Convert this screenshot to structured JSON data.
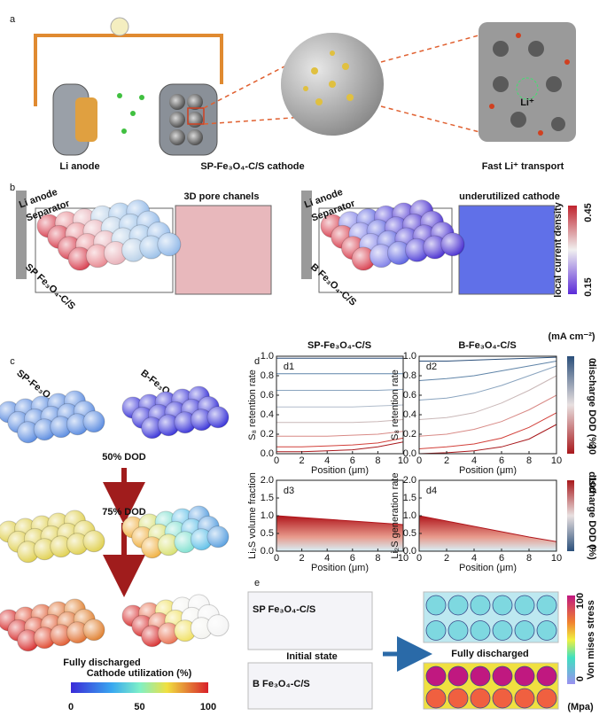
{
  "panel_a": {
    "label": "a",
    "captions": [
      "Li anode",
      "SP-Fe₃O₄-C/S cathode",
      "Fast Li⁺ transport"
    ],
    "ion_label": "Li⁺"
  },
  "panel_b": {
    "label": "b",
    "left": {
      "anode": "Li anode",
      "separator": "Separator",
      "cathode": "SP Fe₃O₄-C/S",
      "zoom_title": "3D pore chanels"
    },
    "right": {
      "anode": "Li anode",
      "separator": "Separator",
      "cathode": "B Fe₃O₄-C/S",
      "zoom_title": "underutilized cathode"
    },
    "colorbar": {
      "title": "local current density",
      "ticks": [
        0.45,
        0.15
      ],
      "unit": "(mA cm⁻²)"
    }
  },
  "panel_c": {
    "label": "c",
    "columns": [
      "SP-Fe₃O₄-C/S",
      "B-Fe₃O₄-C/S"
    ],
    "stages": [
      "50% DOD",
      "75% DOD",
      "Fully discharged"
    ],
    "colorbar": {
      "title": "Cathode utilization (%)",
      "ticks": [
        0,
        50,
        100
      ]
    }
  },
  "panel_d": {
    "label": "d",
    "column_titles": [
      "SP-Fe₃O₄-C/S",
      "B-Fe₃O₄-C/S"
    ],
    "subplots": [
      {
        "tag": "d1",
        "ylabel": "S₈ retention rate",
        "xlabel": "Position (μm)",
        "xlim": [
          0,
          10
        ],
        "xticks": [
          0,
          2,
          4,
          6,
          8,
          10
        ],
        "ylim": [
          0,
          1
        ],
        "yticks": [
          {
            "value": 0,
            "label": "0.0"
          },
          0.2,
          0.4,
          0.6,
          0.8,
          {
            "value": 1,
            "label": "1.0"
          }
        ],
        "x": [
          0,
          2,
          4,
          6,
          8,
          10
        ],
        "series": [
          {
            "color": "#2b4f7a",
            "values": [
              0.98,
              0.98,
              0.98,
              0.98,
              0.98,
              0.98
            ]
          },
          {
            "color": "#5f84a8",
            "values": [
              0.82,
              0.82,
              0.82,
              0.82,
              0.82,
              0.82
            ]
          },
          {
            "color": "#8aa4bf",
            "values": [
              0.65,
              0.65,
              0.65,
              0.65,
              0.65,
              0.66
            ]
          },
          {
            "color": "#b0bccb",
            "values": [
              0.48,
              0.48,
              0.48,
              0.48,
              0.49,
              0.5
            ]
          },
          {
            "color": "#c9b7b7",
            "values": [
              0.32,
              0.32,
              0.32,
              0.32,
              0.33,
              0.35
            ]
          },
          {
            "color": "#d88a86",
            "values": [
              0.18,
              0.18,
              0.18,
              0.19,
              0.2,
              0.23
            ]
          },
          {
            "color": "#d2403a",
            "values": [
              0.07,
              0.07,
              0.08,
              0.09,
              0.11,
              0.16
            ]
          },
          {
            "color": "#a8181c",
            "values": [
              0.02,
              0.02,
              0.03,
              0.04,
              0.07,
              0.12
            ]
          }
        ]
      },
      {
        "tag": "d2",
        "ylabel": "S₈ retention rate",
        "xlabel": "Position (μm)",
        "xlim": [
          0,
          10
        ],
        "xticks": [
          0,
          2,
          4,
          6,
          8,
          10
        ],
        "ylim": [
          0,
          1
        ],
        "yticks": [
          {
            "value": 0,
            "label": "0.0"
          },
          0.2,
          0.4,
          0.6,
          0.8,
          {
            "value": 1,
            "label": "1.0"
          }
        ],
        "x": [
          0,
          2,
          4,
          6,
          8,
          10
        ],
        "series": [
          {
            "color": "#2b4f7a",
            "values": [
              0.95,
              0.95,
              0.96,
              0.97,
              0.98,
              0.99
            ]
          },
          {
            "color": "#5f84a8",
            "values": [
              0.75,
              0.77,
              0.8,
              0.85,
              0.9,
              0.95
            ]
          },
          {
            "color": "#8aa4bf",
            "values": [
              0.55,
              0.57,
              0.62,
              0.7,
              0.8,
              0.9
            ]
          },
          {
            "color": "#c9b7b7",
            "values": [
              0.35,
              0.37,
              0.42,
              0.52,
              0.65,
              0.8
            ]
          },
          {
            "color": "#d88a86",
            "values": [
              0.18,
              0.2,
              0.25,
              0.33,
              0.45,
              0.6
            ]
          },
          {
            "color": "#d2403a",
            "values": [
              0.05,
              0.07,
              0.1,
              0.16,
              0.27,
              0.42
            ]
          },
          {
            "color": "#a8181c",
            "values": [
              0,
              0.01,
              0.03,
              0.07,
              0.15,
              0.3
            ]
          }
        ]
      },
      {
        "tag": "d3",
        "ylabel": "Li₂S volume fraction",
        "xlabel": "Position (μm)",
        "xlim": [
          0,
          10
        ],
        "xticks": [
          0,
          2,
          4,
          6,
          8,
          10
        ],
        "ylim": [
          0,
          2
        ],
        "yticks": [
          {
            "value": 0,
            "label": "0.0"
          },
          0.5,
          {
            "value": 1,
            "label": "1.0"
          },
          1.5,
          {
            "value": 2,
            "label": "2.0"
          }
        ],
        "x": [
          0,
          2,
          4,
          6,
          8,
          10
        ],
        "series": [
          {
            "color": "#b0161c",
            "values": [
              1.0,
              0.95,
              0.9,
              0.85,
              0.8,
              0.75
            ]
          }
        ]
      },
      {
        "tag": "d4",
        "ylabel": "Li₂S generation rate",
        "xlabel": "Position (μm)",
        "xlim": [
          0,
          10
        ],
        "xticks": [
          0,
          2,
          4,
          6,
          8,
          10
        ],
        "ylim": [
          0,
          2
        ],
        "yticks": [
          {
            "value": 0,
            "label": "0.0"
          },
          0.5,
          {
            "value": 1,
            "label": "1.0"
          },
          1.5,
          {
            "value": 2,
            "label": "2.0"
          }
        ],
        "x": [
          0,
          2,
          4,
          6,
          8,
          10
        ],
        "series": [
          {
            "color": "#b0161c",
            "values": [
              1.0,
              0.85,
              0.7,
              0.55,
              0.4,
              0.27
            ]
          }
        ]
      }
    ],
    "colorbars": [
      {
        "title": "discharge DOD (%)",
        "ticks": [
          0,
          20
        ]
      },
      {
        "title": "discharge DOD (%)",
        "ticks": [
          100,
          0
        ]
      }
    ]
  },
  "panel_e": {
    "label": "e",
    "samples": [
      "SP Fe₃O₄-C/S",
      "B Fe₃O₄-C/S"
    ],
    "states": [
      "Initial state",
      "Fully discharged"
    ],
    "colorbar": {
      "title": "Von mises stress",
      "ticks": [
        100,
        0
      ],
      "unit": "(Mpa)"
    }
  }
}
